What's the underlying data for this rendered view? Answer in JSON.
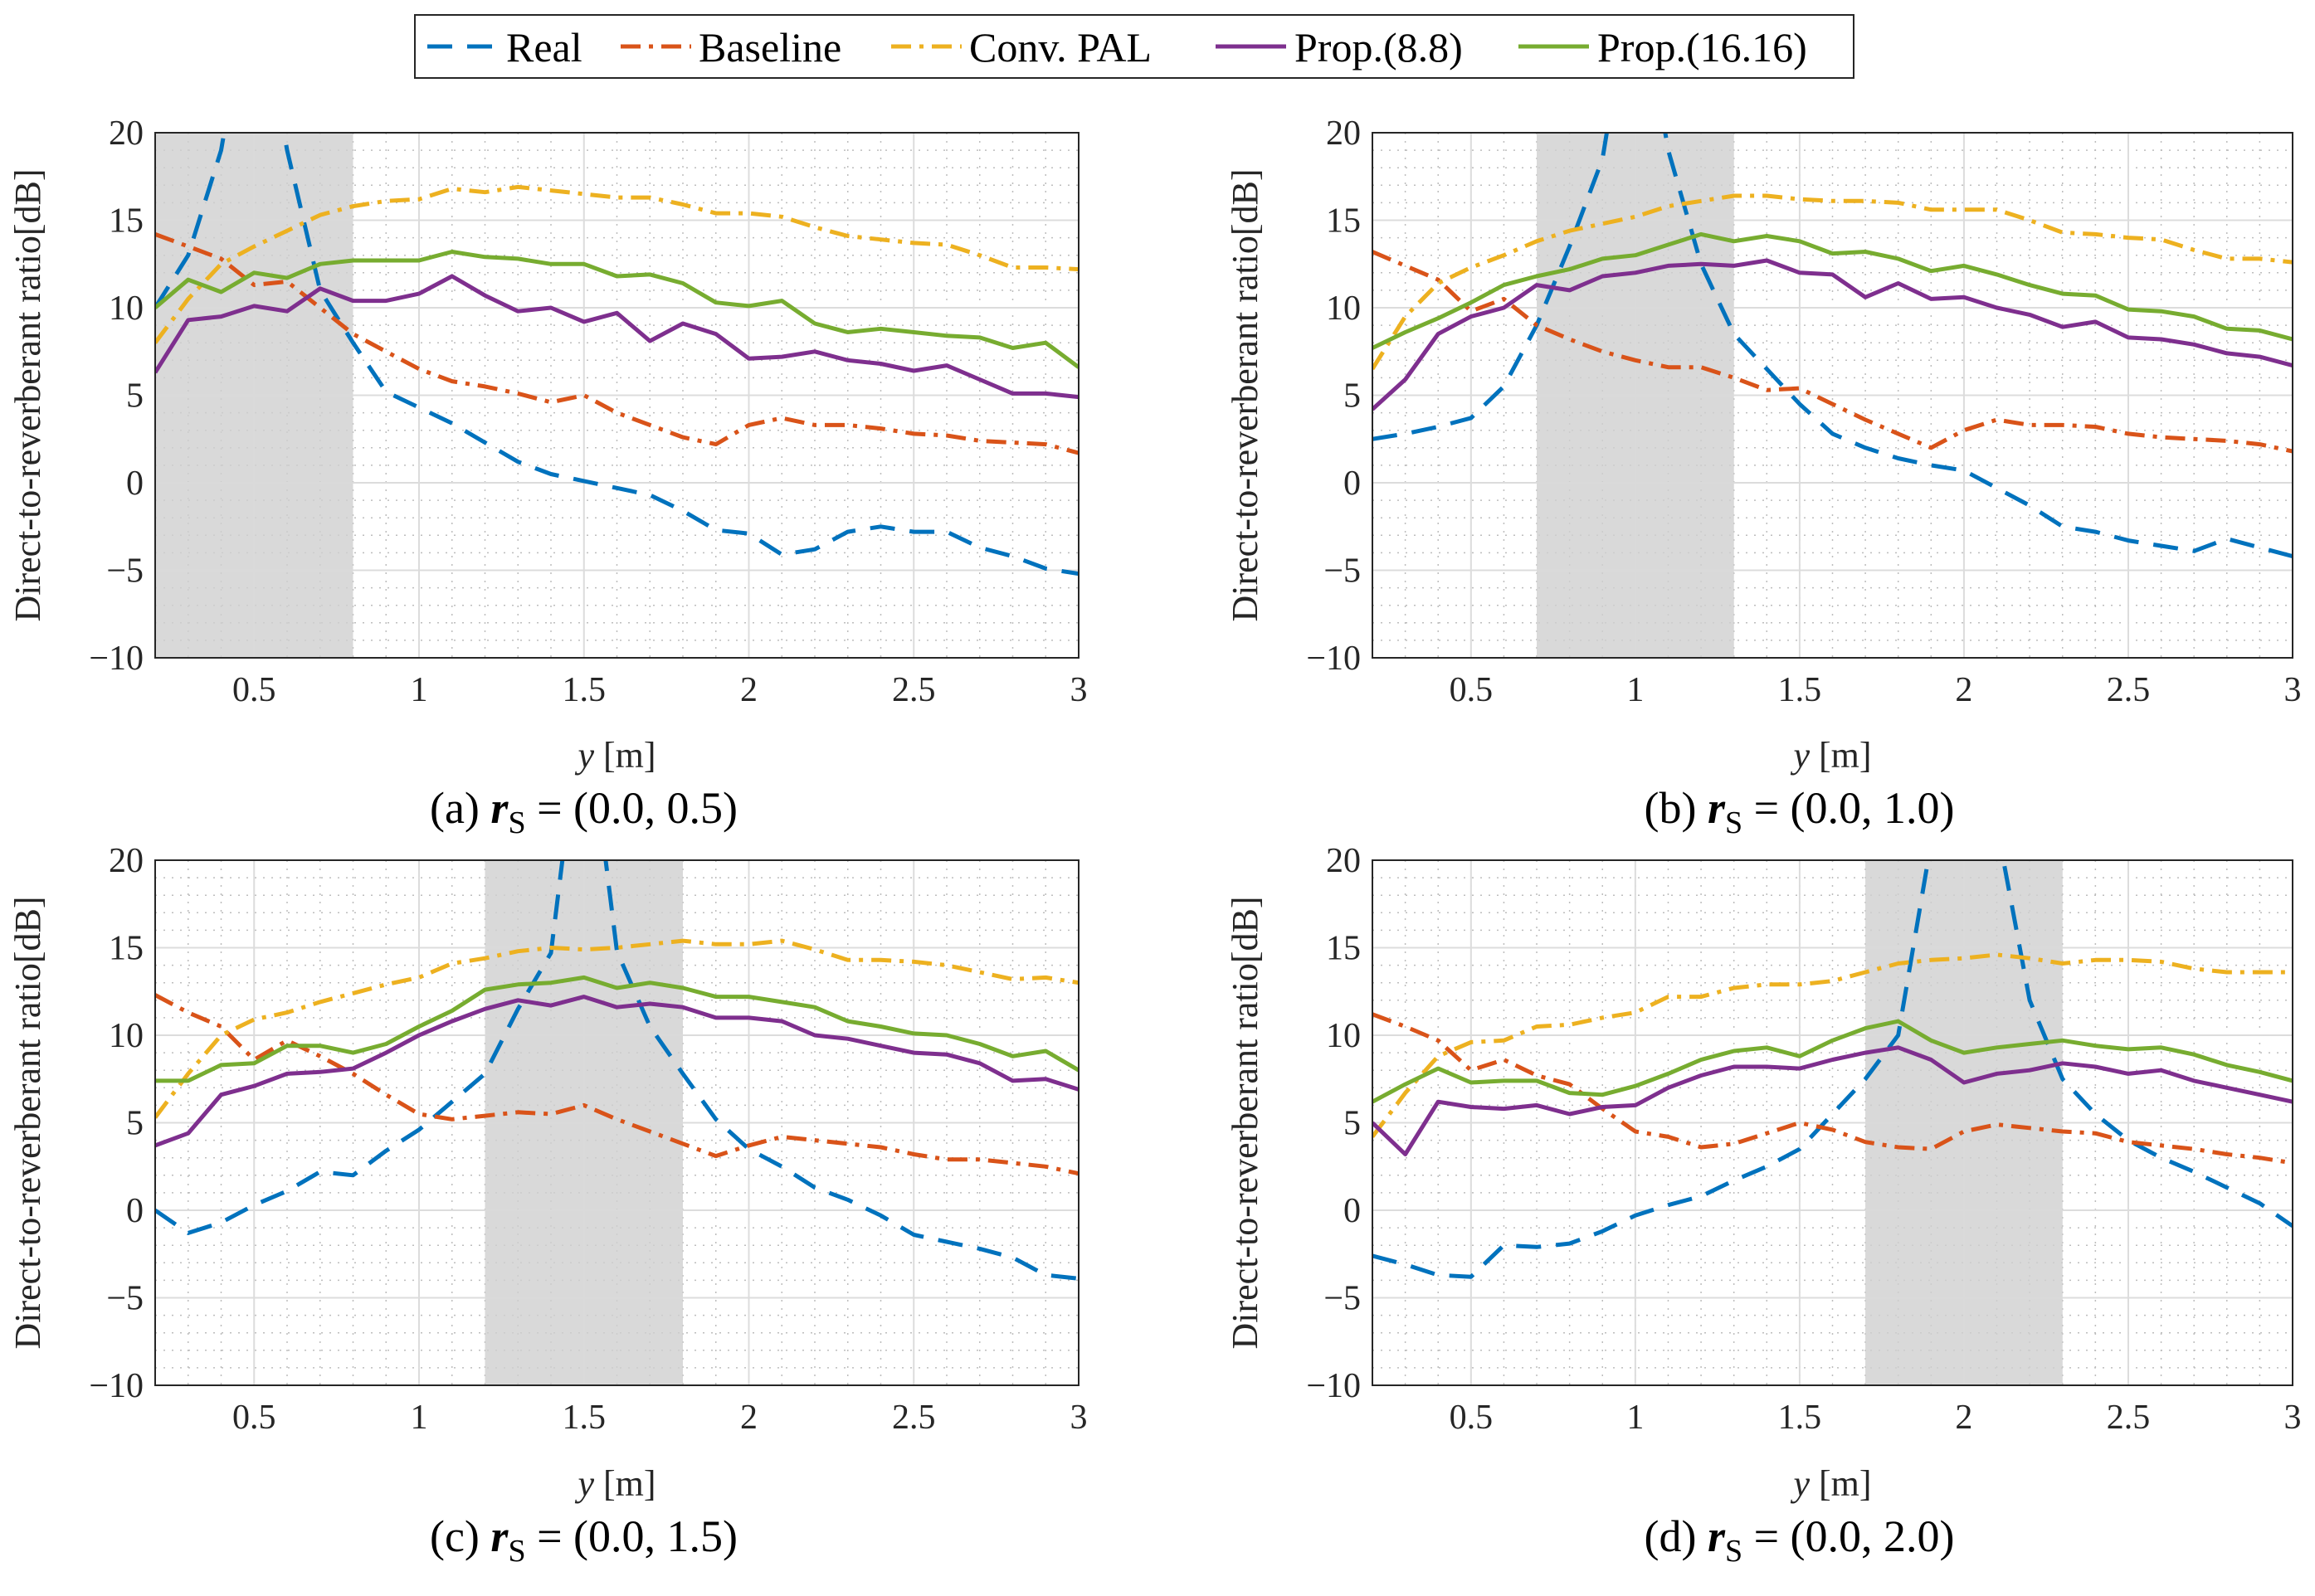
{
  "chart_data": {
    "type": "line",
    "legend": {
      "placement": "top-center",
      "entries": [
        {
          "name": "Real",
          "color": "#0072BD",
          "style": "dashed"
        },
        {
          "name": "Baseline",
          "color": "#D95319",
          "style": "dash-dot"
        },
        {
          "name": "Conv. PAL",
          "color": "#EDB120",
          "style": "dash-dot"
        },
        {
          "name": "Prop.(8.8)",
          "color": "#7E2F8E",
          "style": "solid"
        },
        {
          "name": "Prop.(16.16)",
          "color": "#77AC30",
          "style": "solid"
        }
      ]
    },
    "x": [
      0.2,
      0.3,
      0.4,
      0.5,
      0.6,
      0.7,
      0.8,
      0.9,
      1.0,
      1.1,
      1.2,
      1.3,
      1.4,
      1.5,
      1.6,
      1.7,
      1.8,
      1.9,
      2.0,
      2.1,
      2.2,
      2.3,
      2.4,
      2.5,
      2.6,
      2.7,
      2.8,
      2.9,
      3.0
    ],
    "shared_axes": {
      "xlabel_var": "y",
      "xlabel_unit": "[m]",
      "ylabel": "Direct-to-reverberant ratio[dB]",
      "xlim": [
        0.2,
        3.0
      ],
      "ylim": [
        -10,
        20
      ],
      "xticks": [
        0.5,
        1,
        1.5,
        2,
        2.5,
        3
      ],
      "xtick_labels": [
        "0.5",
        "1",
        "1.5",
        "2",
        "2.5",
        "3"
      ],
      "yticks": [
        -10,
        -5,
        0,
        5,
        10,
        15,
        20
      ],
      "ytick_labels": [
        "−10",
        "−5",
        "0",
        "5",
        "10",
        "15",
        "20"
      ],
      "grid": "major+minor"
    },
    "panels": [
      {
        "caption": {
          "label": "(a)",
          "var": "r",
          "sub": "S",
          "eq": "= (0.0, 0.5)"
        },
        "shaded_region": [
          0.2,
          0.8
        ],
        "series": [
          {
            "name": "Real",
            "values": [
              10,
              13,
              19,
              30,
              19,
              11,
              8,
              5.2,
              4.3,
              3.4,
              2.3,
              1.2,
              0.5,
              0.1,
              -0.3,
              -0.7,
              -1.6,
              -2.7,
              -2.9,
              -4.1,
              -3.8,
              -2.8,
              -2.5,
              -2.8,
              -2.8,
              -3.7,
              -4.2,
              -4.9,
              -5.2
            ]
          },
          {
            "name": "Baseline",
            "values": [
              14.2,
              13.5,
              12.8,
              11.3,
              11.5,
              10,
              8.5,
              7.5,
              6.5,
              5.8,
              5.5,
              5.1,
              4.6,
              5.0,
              4.0,
              3.3,
              2.6,
              2.2,
              3.3,
              3.7,
              3.3,
              3.3,
              3.1,
              2.8,
              2.7,
              2.4,
              2.3,
              2.2,
              1.7
            ]
          },
          {
            "name": "Conv. PAL",
            "values": [
              8,
              10.5,
              12.5,
              13.5,
              14.4,
              15.3,
              15.8,
              16.1,
              16.2,
              16.8,
              16.6,
              16.9,
              16.7,
              16.5,
              16.3,
              16.3,
              15.9,
              15.4,
              15.4,
              15.2,
              14.6,
              14.1,
              13.9,
              13.7,
              13.6,
              13.0,
              12.3,
              12.3,
              12.2
            ]
          },
          {
            "name": "Prop.(8.8)",
            "values": [
              6.3,
              9.3,
              9.5,
              10.1,
              9.8,
              11.1,
              10.4,
              10.4,
              10.8,
              11.8,
              10.7,
              9.8,
              10.0,
              9.2,
              9.7,
              8.1,
              9.1,
              8.5,
              7.1,
              7.2,
              7.5,
              7.0,
              6.8,
              6.4,
              6.7,
              5.9,
              5.1,
              5.1,
              4.9
            ]
          },
          {
            "name": "Prop.(16.16)",
            "values": [
              10,
              11.6,
              10.9,
              12.0,
              11.7,
              12.5,
              12.7,
              12.7,
              12.7,
              13.2,
              12.9,
              12.8,
              12.5,
              12.5,
              11.8,
              11.9,
              11.4,
              10.3,
              10.1,
              10.4,
              9.1,
              8.6,
              8.8,
              8.6,
              8.4,
              8.3,
              7.7,
              8.0,
              6.6
            ]
          }
        ]
      },
      {
        "caption": {
          "label": "(b)",
          "var": "r",
          "sub": "S",
          "eq": "= (0.0, 1.0)"
        },
        "shaded_region": [
          0.7,
          1.3
        ],
        "series": [
          {
            "name": "Real",
            "values": [
              2.5,
              2.8,
              3.2,
              3.7,
              5.5,
              9,
              13.5,
              18.5,
              30,
              19,
              12.5,
              8.5,
              6.5,
              4.5,
              2.8,
              2.0,
              1.4,
              1.0,
              0.7,
              -0.3,
              -1.3,
              -2.5,
              -2.8,
              -3.3,
              -3.6,
              -3.9,
              -3.2,
              -3.7,
              -4.2
            ]
          },
          {
            "name": "Baseline",
            "values": [
              13.2,
              12.4,
              11.6,
              9.8,
              10.5,
              9.0,
              8.2,
              7.5,
              7.0,
              6.6,
              6.6,
              6.0,
              5.3,
              5.4,
              4.5,
              3.6,
              2.8,
              2.0,
              3.0,
              3.6,
              3.3,
              3.3,
              3.2,
              2.8,
              2.6,
              2.5,
              2.4,
              2.2,
              1.8
            ]
          },
          {
            "name": "Conv. PAL",
            "values": [
              6.5,
              9.5,
              11.4,
              12.3,
              13.0,
              13.8,
              14.4,
              14.8,
              15.2,
              15.8,
              16.1,
              16.4,
              16.4,
              16.2,
              16.1,
              16.1,
              16.0,
              15.6,
              15.6,
              15.6,
              15.0,
              14.3,
              14.2,
              14.0,
              13.9,
              13.3,
              12.8,
              12.8,
              12.6
            ]
          },
          {
            "name": "Prop.(8.8)",
            "values": [
              4.2,
              5.9,
              8.5,
              9.5,
              10.0,
              11.3,
              11.0,
              11.8,
              12.0,
              12.4,
              12.5,
              12.4,
              12.7,
              12.0,
              11.9,
              10.6,
              11.4,
              10.5,
              10.6,
              10.0,
              9.6,
              8.9,
              9.2,
              8.3,
              8.2,
              7.9,
              7.4,
              7.2,
              6.7
            ]
          },
          {
            "name": "Prop.(16.16)",
            "values": [
              7.7,
              8.6,
              9.4,
              10.3,
              11.3,
              11.8,
              12.2,
              12.8,
              13.0,
              13.6,
              14.2,
              13.8,
              14.1,
              13.8,
              13.1,
              13.2,
              12.8,
              12.1,
              12.4,
              11.9,
              11.3,
              10.8,
              10.7,
              9.9,
              9.8,
              9.5,
              8.8,
              8.7,
              8.2
            ]
          }
        ]
      },
      {
        "caption": {
          "label": "(c)",
          "var": "r",
          "sub": "S",
          "eq": "= (0.0, 1.5)"
        },
        "shaded_region": [
          1.2,
          1.8
        ],
        "series": [
          {
            "name": "Real",
            "values": [
              0,
              -1.3,
              -0.7,
              0.3,
              1.1,
              2.2,
              2.0,
              3.4,
              4.6,
              6.2,
              7.8,
              11.5,
              14.7,
              30,
              14.8,
              10.5,
              7.8,
              5.2,
              3.5,
              2.5,
              1.3,
              0.6,
              -0.3,
              -1.4,
              -1.8,
              -2.2,
              -2.7,
              -3.7,
              -3.9
            ]
          },
          {
            "name": "Baseline",
            "values": [
              12.3,
              11.3,
              10.5,
              8.6,
              9.7,
              8.8,
              7.8,
              6.6,
              5.5,
              5.2,
              5.4,
              5.6,
              5.5,
              6.0,
              5.2,
              4.5,
              3.8,
              3.1,
              3.7,
              4.2,
              4.0,
              3.8,
              3.6,
              3.2,
              2.9,
              2.9,
              2.7,
              2.5,
              2.1
            ]
          },
          {
            "name": "Conv. PAL",
            "values": [
              5.3,
              7.8,
              10.0,
              10.9,
              11.3,
              11.9,
              12.4,
              12.9,
              13.3,
              14.1,
              14.4,
              14.8,
              15.0,
              14.9,
              15.0,
              15.2,
              15.4,
              15.2,
              15.2,
              15.4,
              14.9,
              14.3,
              14.3,
              14.2,
              14.0,
              13.6,
              13.2,
              13.3,
              13.0
            ]
          },
          {
            "name": "Prop.(8.8)",
            "values": [
              3.7,
              4.4,
              6.6,
              7.1,
              7.8,
              7.9,
              8.1,
              9.0,
              10.0,
              10.8,
              11.5,
              12.0,
              11.7,
              12.2,
              11.6,
              11.8,
              11.6,
              11.0,
              11.0,
              10.8,
              10.0,
              9.8,
              9.4,
              9.0,
              8.9,
              8.4,
              7.4,
              7.5,
              6.9
            ]
          },
          {
            "name": "Prop.(16.16)",
            "values": [
              7.4,
              7.4,
              8.3,
              8.4,
              9.4,
              9.4,
              9.0,
              9.5,
              10.5,
              11.4,
              12.6,
              12.9,
              13.0,
              13.3,
              12.7,
              13.0,
              12.7,
              12.2,
              12.2,
              11.9,
              11.6,
              10.8,
              10.5,
              10.1,
              10.0,
              9.5,
              8.8,
              9.1,
              8.0
            ]
          }
        ]
      },
      {
        "caption": {
          "label": "(d)",
          "var": "r",
          "sub": "S",
          "eq": "= (0.0, 2.0)"
        },
        "shaded_region": [
          1.7,
          2.3
        ],
        "series": [
          {
            "name": "Real",
            "values": [
              -2.6,
              -3.1,
              -3.7,
              -3.8,
              -2.0,
              -2.1,
              -1.9,
              -1.2,
              -0.3,
              0.3,
              0.8,
              1.7,
              2.5,
              3.5,
              5.5,
              7.5,
              10,
              21,
              30,
              22,
              12,
              7.5,
              5.5,
              4.0,
              3.0,
              2.2,
              1.3,
              0.4,
              -0.9
            ]
          },
          {
            "name": "Baseline",
            "values": [
              11.2,
              10.5,
              9.7,
              8.0,
              8.6,
              7.7,
              7.2,
              5.8,
              4.5,
              4.2,
              3.6,
              3.8,
              4.4,
              5.0,
              4.6,
              3.9,
              3.6,
              3.5,
              4.5,
              4.9,
              4.7,
              4.5,
              4.4,
              3.9,
              3.7,
              3.5,
              3.2,
              3.0,
              2.7
            ]
          },
          {
            "name": "Conv. PAL",
            "values": [
              4.2,
              6.7,
              8.8,
              9.6,
              9.7,
              10.5,
              10.6,
              11.0,
              11.3,
              12.2,
              12.2,
              12.7,
              12.9,
              12.9,
              13.1,
              13.6,
              14.1,
              14.3,
              14.4,
              14.6,
              14.4,
              14.1,
              14.3,
              14.3,
              14.2,
              13.8,
              13.6,
              13.6,
              13.6
            ]
          },
          {
            "name": "Prop.(8.8)",
            "values": [
              5.0,
              3.2,
              6.2,
              5.9,
              5.8,
              6.0,
              5.5,
              5.9,
              6.0,
              7.0,
              7.7,
              8.2,
              8.2,
              8.1,
              8.6,
              9.0,
              9.3,
              8.6,
              7.3,
              7.8,
              8.0,
              8.4,
              8.2,
              7.8,
              8.0,
              7.4,
              7.0,
              6.6,
              6.2
            ]
          },
          {
            "name": "Prop.(16.16)",
            "values": [
              6.2,
              7.2,
              8.1,
              7.3,
              7.4,
              7.4,
              6.7,
              6.6,
              7.1,
              7.8,
              8.6,
              9.1,
              9.3,
              8.8,
              9.7,
              10.4,
              10.8,
              9.7,
              9.0,
              9.3,
              9.5,
              9.7,
              9.4,
              9.2,
              9.3,
              8.9,
              8.3,
              7.9,
              7.4
            ]
          }
        ]
      }
    ]
  }
}
